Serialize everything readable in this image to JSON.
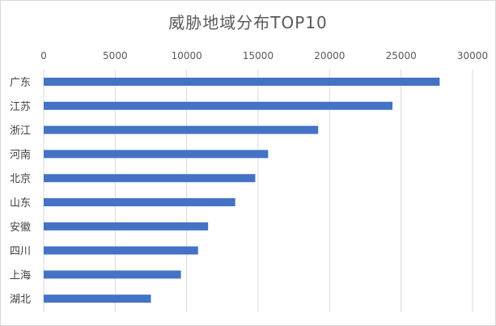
{
  "chart_data": {
    "type": "bar",
    "orientation": "horizontal",
    "title": "威胁地域分布TOP10",
    "categories": [
      "广东",
      "江苏",
      "浙江",
      "河南",
      "北京",
      "山东",
      "安徽",
      "四川",
      "上海",
      "湖北"
    ],
    "values": [
      27700,
      24400,
      19200,
      15700,
      14800,
      13400,
      11500,
      10800,
      9600,
      7500
    ],
    "xlim": [
      0,
      30000
    ],
    "x_ticks": [
      0,
      5000,
      10000,
      15000,
      20000,
      25000,
      30000
    ],
    "x_axis_position": "top",
    "grid": "vertical",
    "legend": "none",
    "bar_color": "#4472c4",
    "grid_color": "#d9d9d9"
  }
}
